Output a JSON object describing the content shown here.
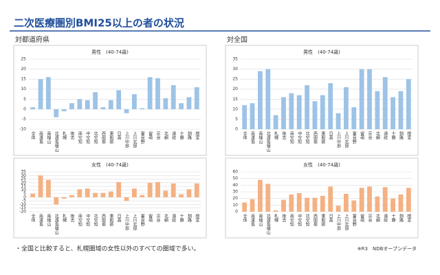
{
  "slide": {
    "title": "二次医療圏別BMI25以上の者の状況",
    "left_label": "対都道府県",
    "right_label": "対全国",
    "note": "・全国と比較すると、札幌圏域の女性以外のすべての圏域で多い。",
    "source": "※R3　NDBオープンデータ"
  },
  "chart_data": [
    {
      "type": "bar",
      "title": "男性　(40-74歳)",
      "color": "#9dc3e6",
      "grid": true,
      "categories": [
        "全体",
        "南渡島",
        "南檜山",
        "北渡島檜山",
        "札幌",
        "後志",
        "南空知",
        "中空知",
        "北空知",
        "西胆振",
        "東胆振",
        "日高",
        "上川中部",
        "上川北部",
        "富良野",
        "留萌",
        "宗谷",
        "北網",
        "遠紋",
        "十勝",
        "釧路",
        "根室"
      ],
      "values": [
        1,
        15,
        16,
        -4,
        -1,
        3,
        5,
        4.5,
        8.5,
        1,
        4.5,
        9.5,
        -2,
        7.5,
        0.5,
        16,
        15.5,
        5.5,
        12,
        3,
        6,
        11
      ],
      "ylim": [
        -10,
        25
      ],
      "yticks": [
        -10,
        -5,
        0,
        5,
        10,
        15,
        20,
        25
      ]
    },
    {
      "type": "bar",
      "title": "女性　(40-74歳)",
      "color": "#f4b183",
      "grid": true,
      "categories": [
        "全体",
        "南渡島",
        "南檜山",
        "北渡島檜山",
        "札幌",
        "後志",
        "南空知",
        "中空知",
        "北空知",
        "西胆振",
        "東胆振",
        "日高",
        "上川中部",
        "上川北部",
        "富良野",
        "留萌",
        "宗谷",
        "北網",
        "遠紋",
        "十勝",
        "釧路",
        "根室"
      ],
      "values": [
        5,
        30,
        24,
        -10,
        -2,
        3,
        11,
        12,
        6,
        6,
        8,
        21,
        -5,
        12,
        3,
        20,
        21,
        9,
        19,
        4,
        11,
        19
      ],
      "ylim": [
        -20,
        35
      ],
      "yticks": [
        -20,
        -15,
        -10,
        -5,
        0,
        5,
        10,
        15,
        20,
        25,
        30,
        35
      ]
    },
    {
      "type": "bar",
      "title": "男性　(40-74歳)",
      "color": "#9dc3e6",
      "grid": true,
      "categories": [
        "全体",
        "南渡島",
        "南檜山",
        "北渡島檜山",
        "札幌",
        "後志",
        "南空知",
        "中空知",
        "北空知",
        "西胆振",
        "東胆振",
        "日高",
        "上川中部",
        "上川北部",
        "富良野",
        "留萌",
        "宗谷",
        "北網",
        "遠紋",
        "十勝",
        "釧路",
        "根室"
      ],
      "values": [
        12,
        13,
        29,
        30,
        7,
        16,
        18,
        17,
        22,
        14,
        17,
        23,
        8,
        21,
        11,
        30,
        30,
        19,
        26,
        16,
        19,
        25
      ],
      "ylim": [
        0,
        35
      ],
      "yticks": [
        0,
        5,
        10,
        15,
        20,
        25,
        30,
        35
      ]
    },
    {
      "type": "bar",
      "title": "女性　(40-74歳)",
      "color": "#f4b183",
      "grid": true,
      "categories": [
        "全体",
        "南渡島",
        "南檜山",
        "北渡島檜山",
        "札幌",
        "後志",
        "南空知",
        "中空知",
        "北空知",
        "西胆振",
        "東胆振",
        "日高",
        "上川中部",
        "上川北部",
        "富良野",
        "留萌",
        "宗谷",
        "北網",
        "遠紋",
        "十勝",
        "釧路",
        "根室"
      ],
      "values": [
        14,
        19,
        48,
        42,
        2,
        18,
        26,
        28,
        21,
        21,
        24,
        38,
        9,
        27,
        17,
        36,
        38,
        23,
        37,
        20,
        26,
        36
      ],
      "ylim": [
        0,
        60
      ],
      "yticks": [
        0,
        10,
        20,
        30,
        40,
        50,
        60
      ]
    }
  ]
}
